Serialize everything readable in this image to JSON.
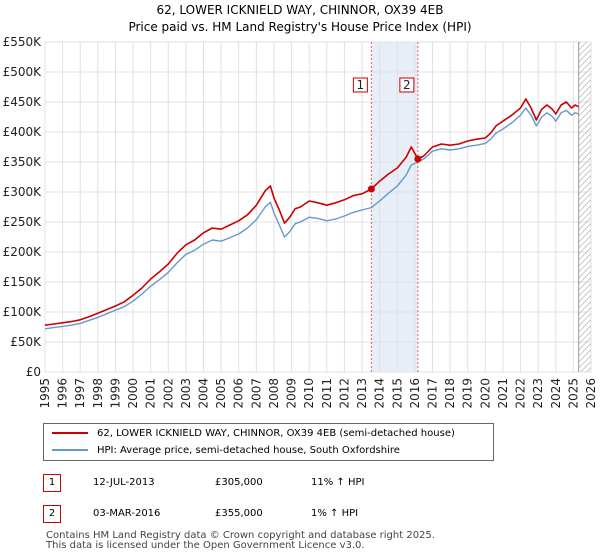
{
  "title_line1": "62, LOWER ICKNIELD WAY, CHINNOR, OX39 4EB",
  "title_line2": "Price paid vs. HM Land Registry's House Price Index (HPI)",
  "chart_data": {
    "type": "line",
    "x_range": [
      1995,
      2026
    ],
    "ylim": [
      0,
      550000
    ],
    "y_ticks": [
      {
        "value": 0,
        "label": "£0"
      },
      {
        "value": 50000,
        "label": "£50K"
      },
      {
        "value": 100000,
        "label": "£100K"
      },
      {
        "value": 150000,
        "label": "£150K"
      },
      {
        "value": 200000,
        "label": "£200K"
      },
      {
        "value": 250000,
        "label": "£250K"
      },
      {
        "value": 300000,
        "label": "£300K"
      },
      {
        "value": 350000,
        "label": "£350K"
      },
      {
        "value": 400000,
        "label": "£400K"
      },
      {
        "value": 450000,
        "label": "£450K"
      },
      {
        "value": 500000,
        "label": "£500K"
      },
      {
        "value": 550000,
        "label": "£550K"
      }
    ],
    "x_ticks": [
      "1995",
      "1996",
      "1997",
      "1998",
      "1999",
      "2000",
      "2001",
      "2002",
      "2003",
      "2004",
      "2005",
      "2006",
      "2007",
      "2008",
      "2009",
      "2010",
      "2011",
      "2012",
      "2013",
      "2014",
      "2015",
      "2016",
      "2017",
      "2018",
      "2019",
      "2020",
      "2021",
      "2022",
      "2023",
      "2024",
      "2025",
      "2026"
    ],
    "grid": true,
    "colors": {
      "property": "#cc0000",
      "hpi": "#6699cc",
      "shade": "#e8eef8",
      "grid": "#e0e0e0"
    },
    "series": [
      {
        "name": "62, LOWER ICKNIELD WAY, CHINNOR, OX39 4EB (semi-detached house)",
        "x": [
          1995.0,
          1995.5,
          1996.0,
          1996.5,
          1997.0,
          1997.5,
          1998.0,
          1998.5,
          1999.0,
          1999.5,
          2000.0,
          2000.5,
          2001.0,
          2001.5,
          2002.0,
          2002.5,
          2003.0,
          2003.5,
          2004.0,
          2004.5,
          2005.0,
          2005.5,
          2006.0,
          2006.5,
          2007.0,
          2007.5,
          2007.8,
          2008.0,
          2008.3,
          2008.6,
          2008.9,
          2009.2,
          2009.5,
          2010.0,
          2010.5,
          2011.0,
          2011.5,
          2012.0,
          2012.5,
          2013.0,
          2013.53,
          2014.0,
          2014.5,
          2015.0,
          2015.5,
          2015.8,
          2016.17,
          2016.5,
          2017.0,
          2017.5,
          2018.0,
          2018.5,
          2019.0,
          2019.5,
          2020.0,
          2020.3,
          2020.6,
          2021.0,
          2021.5,
          2022.0,
          2022.3,
          2022.6,
          2022.9,
          2023.2,
          2023.5,
          2023.8,
          2024.0,
          2024.3,
          2024.6,
          2024.9,
          2025.1,
          2025.3
        ],
        "y": [
          78000,
          80000,
          82000,
          84000,
          87000,
          92000,
          98000,
          104000,
          110000,
          117000,
          128000,
          140000,
          155000,
          167000,
          180000,
          198000,
          212000,
          220000,
          232000,
          240000,
          238000,
          245000,
          252000,
          262000,
          278000,
          302000,
          310000,
          290000,
          270000,
          248000,
          258000,
          272000,
          275000,
          285000,
          282000,
          278000,
          282000,
          287000,
          294000,
          297000,
          305000,
          318000,
          330000,
          340000,
          358000,
          375000,
          355000,
          360000,
          375000,
          380000,
          378000,
          380000,
          385000,
          388000,
          390000,
          398000,
          410000,
          418000,
          428000,
          440000,
          455000,
          440000,
          420000,
          438000,
          445000,
          438000,
          430000,
          445000,
          450000,
          440000,
          445000,
          442000
        ]
      },
      {
        "name": "HPI: Average price, semi-detached house, South Oxfordshire",
        "x": [
          1995.0,
          1995.5,
          1996.0,
          1996.5,
          1997.0,
          1997.5,
          1998.0,
          1998.5,
          1999.0,
          1999.5,
          2000.0,
          2000.5,
          2001.0,
          2001.5,
          2002.0,
          2002.5,
          2003.0,
          2003.5,
          2004.0,
          2004.5,
          2005.0,
          2005.5,
          2006.0,
          2006.5,
          2007.0,
          2007.5,
          2007.8,
          2008.0,
          2008.3,
          2008.6,
          2008.9,
          2009.2,
          2009.5,
          2010.0,
          2010.5,
          2011.0,
          2011.5,
          2012.0,
          2012.5,
          2013.0,
          2013.53,
          2014.0,
          2014.5,
          2015.0,
          2015.5,
          2015.8,
          2016.17,
          2016.5,
          2017.0,
          2017.5,
          2018.0,
          2018.5,
          2019.0,
          2019.5,
          2020.0,
          2020.3,
          2020.6,
          2021.0,
          2021.5,
          2022.0,
          2022.3,
          2022.6,
          2022.9,
          2023.2,
          2023.5,
          2023.8,
          2024.0,
          2024.3,
          2024.6,
          2024.9,
          2025.1,
          2025.3
        ],
        "y": [
          72000,
          74000,
          76000,
          78000,
          81000,
          86000,
          91000,
          97000,
          103000,
          109000,
          118000,
          130000,
          143000,
          154000,
          166000,
          182000,
          196000,
          203000,
          213000,
          220000,
          218000,
          224000,
          230000,
          240000,
          254000,
          275000,
          283000,
          265000,
          245000,
          225000,
          234000,
          247000,
          250000,
          258000,
          256000,
          252000,
          255000,
          260000,
          266000,
          270000,
          274000,
          285000,
          298000,
          310000,
          328000,
          345000,
          350000,
          355000,
          368000,
          372000,
          370000,
          372000,
          376000,
          378000,
          381000,
          388000,
          398000,
          405000,
          415000,
          428000,
          440000,
          428000,
          410000,
          425000,
          432000,
          426000,
          418000,
          432000,
          436000,
          428000,
          432000,
          430000
        ]
      }
    ],
    "transactions": [
      {
        "id": "1",
        "x": 2013.53,
        "y": 305000,
        "date": "12-JUL-2013",
        "price": "£305,000",
        "hpi": "11% ↑ HPI"
      },
      {
        "id": "2",
        "x": 2016.17,
        "y": 355000,
        "date": "03-MAR-2016",
        "price": "£355,000",
        "hpi": "1% ↑ HPI"
      }
    ],
    "hatch_from": 2025.3
  },
  "legend": {
    "property_label": "62, LOWER ICKNIELD WAY, CHINNOR, OX39 4EB (semi-detached house)",
    "hpi_label": "HPI: Average price, semi-detached house, South Oxfordshire"
  },
  "footer": {
    "line1": "Contains HM Land Registry data © Crown copyright and database right 2025.",
    "line2": "This data is licensed under the Open Government Licence v3.0."
  }
}
